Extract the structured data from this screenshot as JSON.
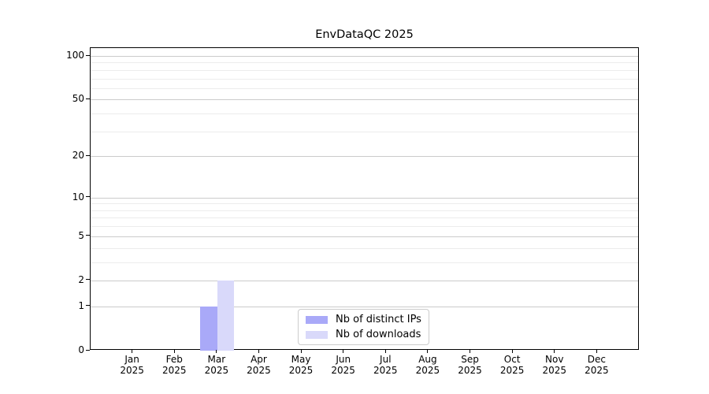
{
  "chart_data": {
    "type": "bar",
    "title": "EnvDataQC 2025",
    "categories": [
      "Jan 2025",
      "Feb 2025",
      "Mar 2025",
      "Apr 2025",
      "May 2025",
      "Jun 2025",
      "Jul 2025",
      "Aug 2025",
      "Sep 2025",
      "Oct 2025",
      "Nov 2025",
      "Dec 2025"
    ],
    "series": [
      {
        "name": "Nb of distinct IPs",
        "color": "#a9a9f8",
        "values": [
          0,
          0,
          1,
          0,
          0,
          0,
          0,
          0,
          0,
          0,
          0,
          0
        ]
      },
      {
        "name": "Nb of downloads",
        "color": "#d9d9fa",
        "values": [
          0,
          0,
          2,
          0,
          0,
          0,
          0,
          0,
          0,
          0,
          0,
          0
        ]
      }
    ],
    "y_axis": {
      "scale": "log1p",
      "major_ticks": [
        0,
        1,
        2,
        5,
        10,
        20,
        50,
        100
      ],
      "minor_gridlines": [
        3,
        4,
        6,
        7,
        8,
        9,
        30,
        40,
        60,
        70,
        80,
        90
      ],
      "range": [
        0,
        112
      ]
    },
    "x_axis": {
      "range_units": [
        -1,
        12
      ]
    },
    "legend": {
      "position": "lower center",
      "entries": [
        "Nb of distinct IPs",
        "Nb of downloads"
      ]
    },
    "grid": true,
    "colors": {
      "major_grid": "#cbcbcb",
      "minor_grid": "#ececec",
      "axis": "#000000",
      "background": "#ffffff",
      "text": "#000000"
    }
  }
}
